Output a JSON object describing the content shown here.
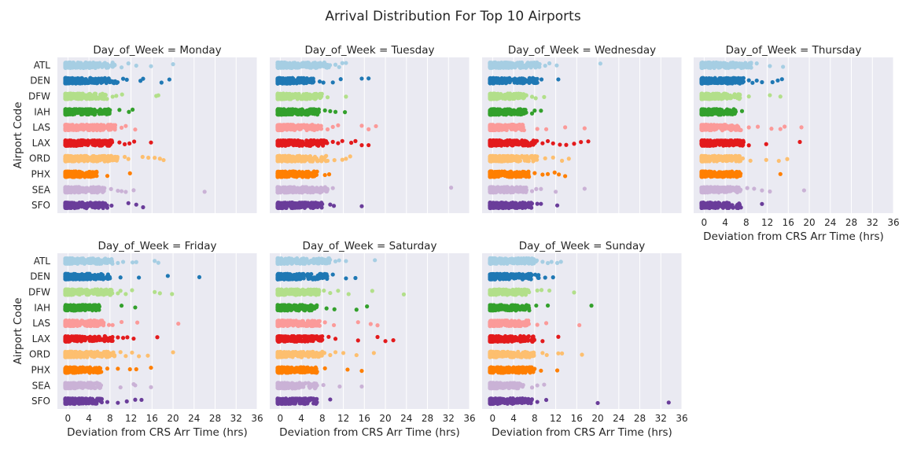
{
  "figure": {
    "title": "Arrival Distribution For Top 10 Airports",
    "background": "#ffffff",
    "panel_background": "#eaeaf2",
    "grid_color": "#ffffff"
  },
  "chart_data": {
    "type": "scatter",
    "subtype": "strip",
    "title": "Arrival Distribution For Top 10 Airports",
    "xlabel": "Deviation from CRS Arr Time (hrs)",
    "ylabel": "Airport Code",
    "xlim": [
      -2,
      36
    ],
    "xticks": [
      0,
      4,
      8,
      12,
      16,
      20,
      24,
      28,
      32,
      36
    ],
    "xtick_labels": [
      "0",
      "4",
      "8",
      "12",
      "16",
      "20",
      "24",
      "28",
      "32",
      "36"
    ],
    "grid": true,
    "categories": [
      "ATL",
      "DEN",
      "DFW",
      "IAH",
      "LAS",
      "LAX",
      "ORD",
      "PHX",
      "SEA",
      "SFO"
    ],
    "colors": {
      "ATL": "#a6cee3",
      "DEN": "#1f78b4",
      "DFW": "#b2df8a",
      "IAH": "#33a02c",
      "LAS": "#fb9a99",
      "LAX": "#e31a1c",
      "ORD": "#fdbf6f",
      "PHX": "#ff7f00",
      "SEA": "#cab2d6",
      "SFO": "#6a3d9a"
    },
    "panels": [
      {
        "title": "Day_of_Week = Monday",
        "series": [
          {
            "name": "ATL",
            "dense_range": [
              -0.5,
              9
            ],
            "outliers": [
              10.2,
              11.5,
              13,
              15.8,
              20
            ]
          },
          {
            "name": "DEN",
            "dense_range": [
              -0.5,
              9.5
            ],
            "outliers": [
              10.5,
              11.2,
              13.8,
              14.3,
              17.8,
              19.3
            ]
          },
          {
            "name": "DFW",
            "dense_range": [
              -0.5,
              7.5
            ],
            "outliers": [
              8.5,
              9.2,
              10.3,
              16.8,
              17.2
            ]
          },
          {
            "name": "IAH",
            "dense_range": [
              -0.5,
              8
            ],
            "outliers": [
              9.8,
              11.6,
              12.3
            ]
          },
          {
            "name": "LAS",
            "dense_range": [
              -0.5,
              9
            ],
            "outliers": [
              10.2,
              11,
              12.8
            ]
          },
          {
            "name": "LAX",
            "dense_range": [
              -0.5,
              8.5
            ],
            "outliers": [
              9.8,
              10.8,
              11.7,
              12.6,
              15.8
            ]
          },
          {
            "name": "ORD",
            "dense_range": [
              -0.5,
              9.5
            ],
            "outliers": [
              10.8,
              11.5,
              14.2,
              15.3,
              16.5,
              17.5,
              18.2
            ]
          },
          {
            "name": "PHX",
            "dense_range": [
              -0.5,
              5.5
            ],
            "outliers": [
              7.5,
              11.8
            ]
          },
          {
            "name": "SEA",
            "dense_range": [
              -0.5,
              7
            ],
            "outliers": [
              8.2,
              9.5,
              10.2,
              11,
              12.5,
              26
            ]
          },
          {
            "name": "SFO",
            "dense_range": [
              -0.5,
              7.5
            ],
            "outliers": [
              8.3,
              11.5,
              13,
              14.3
            ]
          }
        ]
      },
      {
        "title": "Day_of_Week = Tuesday",
        "series": [
          {
            "name": "ATL",
            "dense_range": [
              -0.5,
              9.5
            ],
            "outliers": [
              10.5,
              11.2,
              11.8,
              12.5
            ]
          },
          {
            "name": "DEN",
            "dense_range": [
              -0.5,
              6.5
            ],
            "outliers": [
              7.5,
              8.2,
              10,
              11.5,
              15.5,
              16.8
            ]
          },
          {
            "name": "DFW",
            "dense_range": [
              -0.5,
              8
            ],
            "outliers": [
              9,
              12.5
            ]
          },
          {
            "name": "IAH",
            "dense_range": [
              -0.5,
              7.5
            ],
            "outliers": [
              8.5,
              9.5,
              10.5,
              12.3
            ]
          },
          {
            "name": "LAS",
            "dense_range": [
              -0.5,
              8
            ],
            "outliers": [
              9,
              10,
              11,
              15.5,
              16.8,
              18.2
            ]
          },
          {
            "name": "LAX",
            "dense_range": [
              -0.5,
              9
            ],
            "outliers": [
              10,
              11,
              11.8,
              13.5,
              14.3,
              15.5,
              16.8
            ]
          },
          {
            "name": "ORD",
            "dense_range": [
              -0.5,
              9
            ],
            "outliers": [
              10.3,
              11.8,
              12.5,
              13.3
            ]
          },
          {
            "name": "PHX",
            "dense_range": [
              -0.5,
              7
            ],
            "outliers": [
              8.5,
              9.3
            ]
          },
          {
            "name": "SEA",
            "dense_range": [
              -0.5,
              9
            ],
            "outliers": [
              10,
              32.5
            ]
          },
          {
            "name": "SFO",
            "dense_range": [
              -0.5,
              8
            ],
            "outliers": [
              9.5,
              10.2,
              15.5
            ]
          }
        ]
      },
      {
        "title": "Day_of_Week = Wednesday",
        "series": [
          {
            "name": "ATL",
            "dense_range": [
              -0.5,
              9
            ],
            "outliers": [
              10,
              10.8,
              12.2,
              20.5
            ]
          },
          {
            "name": "DEN",
            "dense_range": [
              -0.5,
              8.5
            ],
            "outliers": [
              9.3,
              12.5
            ]
          },
          {
            "name": "DFW",
            "dense_range": [
              -0.5,
              6.5
            ],
            "outliers": [
              7.5,
              8.2,
              9.8
            ]
          },
          {
            "name": "IAH",
            "dense_range": [
              -0.5,
              6.5
            ],
            "outliers": [
              7.5,
              8,
              9.2
            ]
          },
          {
            "name": "LAS",
            "dense_range": [
              -0.5,
              6
            ],
            "outliers": [
              8.5,
              10.2,
              13.8,
              17.5
            ]
          },
          {
            "name": "LAX",
            "dense_range": [
              -0.5,
              8.5
            ],
            "outliers": [
              9.5,
              10.5,
              11.5,
              12.8,
              14,
              15.5,
              16.8,
              18.2
            ]
          },
          {
            "name": "ORD",
            "dense_range": [
              -0.5,
              8.5
            ],
            "outliers": [
              10,
              11.5,
              13.2,
              14.5
            ]
          },
          {
            "name": "PHX",
            "dense_range": [
              -0.5,
              7
            ],
            "outliers": [
              8,
              9.5,
              10.5,
              11.8,
              12.6,
              13.8
            ]
          },
          {
            "name": "SEA",
            "dense_range": [
              -0.5,
              6.5
            ],
            "outliers": [
              7.5,
              8.3,
              9.2,
              12,
              17.5
            ]
          },
          {
            "name": "SFO",
            "dense_range": [
              -0.5,
              7.5
            ],
            "outliers": [
              8.5,
              9.2,
              12.3
            ]
          }
        ]
      },
      {
        "title": "Day_of_Week = Thursday",
        "series": [
          {
            "name": "ATL",
            "dense_range": [
              -0.5,
              9
            ],
            "outliers": [
              10,
              12.5,
              15
            ]
          },
          {
            "name": "DEN",
            "dense_range": [
              -0.5,
              7.5
            ],
            "outliers": [
              8.5,
              9.2,
              10,
              11,
              13,
              14,
              14.8
            ]
          },
          {
            "name": "DFW",
            "dense_range": [
              -0.5,
              7
            ],
            "outliers": [
              8.5,
              12.5,
              14.5
            ]
          },
          {
            "name": "IAH",
            "dense_range": [
              -0.5,
              6
            ],
            "outliers": [
              7.2
            ]
          },
          {
            "name": "LAS",
            "dense_range": [
              -0.5,
              7
            ],
            "outliers": [
              8.5,
              10.2,
              12.8,
              14.5,
              15.3,
              18.5
            ]
          },
          {
            "name": "LAX",
            "dense_range": [
              -0.5,
              7.5
            ],
            "outliers": [
              8.5,
              11.8,
              18.2
            ]
          },
          {
            "name": "ORD",
            "dense_range": [
              -0.5,
              7.5
            ],
            "outliers": [
              8.8,
              11.8,
              14.2,
              15.8
            ]
          },
          {
            "name": "PHX",
            "dense_range": [
              -0.5,
              7
            ],
            "outliers": [
              14.5
            ]
          },
          {
            "name": "SEA",
            "dense_range": [
              -0.5,
              7
            ],
            "outliers": [
              8.2,
              9.5,
              11,
              12.5,
              19
            ]
          },
          {
            "name": "SFO",
            "dense_range": [
              -0.5,
              7
            ],
            "outliers": [
              11
            ]
          }
        ]
      },
      {
        "title": "Day_of_Week = Friday",
        "series": [
          {
            "name": "ATL",
            "dense_range": [
              -0.5,
              8.5
            ],
            "outliers": [
              9.5,
              10.5,
              12.3,
              13,
              16.5,
              17.2
            ]
          },
          {
            "name": "DEN",
            "dense_range": [
              -0.5,
              8
            ],
            "outliers": [
              10,
              13.5,
              19,
              25
            ]
          },
          {
            "name": "DFW",
            "dense_range": [
              -0.5,
              8.5
            ],
            "outliers": [
              9.5,
              10,
              11,
              12.2,
              16.5,
              17.5,
              19.8
            ]
          },
          {
            "name": "IAH",
            "dense_range": [
              -0.5,
              6
            ],
            "outliers": [
              10.2,
              12.8
            ]
          },
          {
            "name": "LAS",
            "dense_range": [
              -0.5,
              7
            ],
            "outliers": [
              7.8,
              8.5,
              10.2,
              13.2,
              21
            ]
          },
          {
            "name": "LAX",
            "dense_range": [
              -0.5,
              8.5
            ],
            "outliers": [
              9.5,
              10.5,
              11.3,
              12.5,
              17
            ]
          },
          {
            "name": "ORD",
            "dense_range": [
              -0.5,
              9
            ],
            "outliers": [
              10,
              11,
              12.2,
              13.5,
              15.2,
              20
            ]
          },
          {
            "name": "PHX",
            "dense_range": [
              -0.5,
              6.5
            ],
            "outliers": [
              7.5,
              9.5,
              11.8,
              13,
              15.8
            ]
          },
          {
            "name": "SEA",
            "dense_range": [
              -0.5,
              6.5
            ],
            "outliers": [
              10,
              12.5,
              12.8,
              15.8
            ]
          },
          {
            "name": "SFO",
            "dense_range": [
              -0.5,
              6.5
            ],
            "outliers": [
              7.5,
              9.5,
              11.2,
              12.8,
              14
            ]
          }
        ]
      },
      {
        "title": "Day_of_Week = Saturday",
        "series": [
          {
            "name": "ATL",
            "dense_range": [
              -0.5,
              9.5
            ],
            "outliers": [
              10.5,
              11.2,
              12.5,
              18
            ]
          },
          {
            "name": "DEN",
            "dense_range": [
              -0.5,
              9
            ],
            "outliers": [
              10,
              12.5,
              14.3
            ]
          },
          {
            "name": "DFW",
            "dense_range": [
              -0.5,
              7.5
            ],
            "outliers": [
              8.3,
              9.5,
              11,
              13,
              17.5,
              23.5
            ]
          },
          {
            "name": "IAH",
            "dense_range": [
              -0.5,
              7
            ],
            "outliers": [
              8.8,
              10.3,
              14.5,
              16.5
            ]
          },
          {
            "name": "LAS",
            "dense_range": [
              -0.5,
              7.5
            ],
            "outliers": [
              8.5,
              10.2,
              14.8,
              17.2,
              18.5
            ]
          },
          {
            "name": "LAX",
            "dense_range": [
              -0.5,
              8
            ],
            "outliers": [
              9.2,
              10.5,
              14.8,
              18.5,
              20,
              21.5
            ]
          },
          {
            "name": "ORD",
            "dense_range": [
              -0.5,
              8.5
            ],
            "outliers": [
              9.5,
              10.5,
              12,
              14.5,
              17.8
            ]
          },
          {
            "name": "PHX",
            "dense_range": [
              -0.5,
              7
            ],
            "outliers": [
              8.5,
              12.8,
              15.5
            ]
          },
          {
            "name": "SEA",
            "dense_range": [
              -0.5,
              7
            ],
            "outliers": [
              8.2,
              11.3,
              15.5
            ]
          },
          {
            "name": "SFO",
            "dense_range": [
              -0.5,
              7
            ],
            "outliers": [
              9.5
            ]
          }
        ]
      },
      {
        "title": "Day_of_Week = Sunday",
        "series": [
          {
            "name": "ATL",
            "dense_range": [
              -0.5,
              8.5
            ],
            "outliers": [
              9.5,
              10.5,
              11.2,
              12.3,
              13
            ]
          },
          {
            "name": "DEN",
            "dense_range": [
              -0.5,
              9
            ],
            "outliers": [
              10,
              11.5
            ]
          },
          {
            "name": "DFW",
            "dense_range": [
              -0.5,
              7
            ],
            "outliers": [
              8.5,
              9.3,
              10.8,
              15.5
            ]
          },
          {
            "name": "IAH",
            "dense_range": [
              -0.5,
              7
            ],
            "outliers": [
              8.3,
              10.5,
              18.8
            ]
          },
          {
            "name": "LAS",
            "dense_range": [
              -0.5,
              7
            ],
            "outliers": [
              8.5,
              10.2,
              16.5
            ]
          },
          {
            "name": "LAX",
            "dense_range": [
              -0.5,
              8
            ],
            "outliers": [
              9.5,
              12.5
            ]
          },
          {
            "name": "ORD",
            "dense_range": [
              -0.5,
              8
            ],
            "outliers": [
              9.5,
              10.3,
              12.5,
              13.2,
              17
            ]
          },
          {
            "name": "PHX",
            "dense_range": [
              -0.5,
              8
            ],
            "outliers": [
              9.2,
              12.3
            ]
          },
          {
            "name": "SEA",
            "dense_range": [
              -0.5,
              6
            ],
            "outliers": [
              7.5,
              8.5,
              9.8
            ]
          },
          {
            "name": "SFO",
            "dense_range": [
              -0.5,
              7.5
            ],
            "outliers": [
              8.5,
              10.2,
              20,
              33.5
            ]
          }
        ]
      }
    ]
  }
}
